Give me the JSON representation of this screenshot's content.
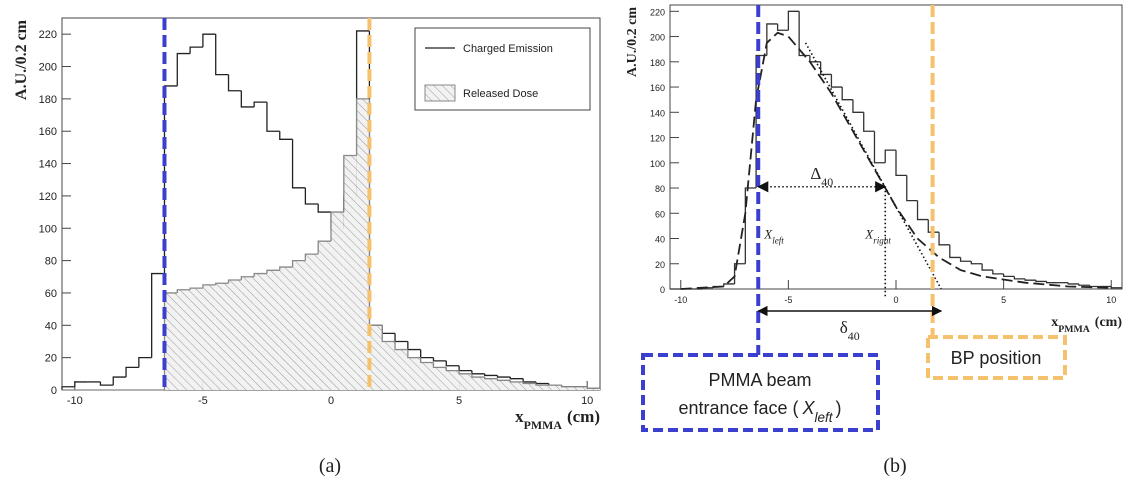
{
  "chart_data": [
    {
      "type": "histogram",
      "ylabel": "A.U./0.2 cm",
      "xlabel": {
        "base": "x",
        "sub": "PMMA",
        "unit": "(cm)"
      },
      "xlim": [
        -10.5,
        10.5
      ],
      "ylim": [
        0,
        230
      ],
      "xticks": [
        -10,
        -5,
        0,
        5,
        10
      ],
      "yticks": [
        0,
        20,
        40,
        60,
        80,
        100,
        120,
        140,
        160,
        180,
        200,
        220
      ],
      "legend": "upper right",
      "bins": [
        -10.5,
        -10,
        -9.5,
        -9,
        -8.5,
        -8,
        -7.5,
        -7,
        -6.5,
        -6,
        -5.5,
        -5,
        -4.5,
        -4,
        -3.5,
        -3,
        -2.5,
        -2,
        -1.5,
        -1,
        -0.5,
        0,
        0.5,
        1,
        1.5,
        2,
        2.5,
        3,
        3.5,
        4,
        4.5,
        5,
        5.5,
        6,
        6.5,
        7,
        7.5,
        8,
        8.5,
        9,
        9.5,
        10,
        10.5
      ],
      "series": [
        {
          "name": "Charged Emission",
          "color": "#222222",
          "fill": "none",
          "values": [
            2,
            5,
            5,
            3,
            8,
            14,
            20,
            72,
            188,
            208,
            212,
            220,
            195,
            185,
            175,
            178,
            160,
            155,
            125,
            115,
            110,
            100,
            120,
            222,
            40,
            35,
            30,
            25,
            20,
            18,
            15,
            12,
            10,
            9,
            8,
            7,
            5,
            4,
            3,
            2,
            2,
            1
          ]
        },
        {
          "name": "Released Dose",
          "color": "#888888",
          "fill": "hatch",
          "values": [
            0,
            0,
            0,
            0,
            0,
            0,
            0,
            0,
            60,
            62,
            63,
            65,
            66,
            68,
            70,
            72,
            74,
            76,
            80,
            84,
            92,
            110,
            145,
            180,
            40,
            30,
            25,
            20,
            17,
            14,
            12,
            10,
            8,
            7,
            6,
            5,
            4,
            3,
            3,
            2,
            2,
            1
          ]
        }
      ],
      "markers": [
        {
          "value": -6.5,
          "color": "#3a3fd0"
        },
        {
          "value": 1.5,
          "color": "#f5c16c"
        }
      ]
    },
    {
      "type": "histogram",
      "ylabel": "A.U./0.2 cm",
      "xlabel": {
        "base": "x",
        "sub": "PMMA",
        "unit": "(cm)"
      },
      "xlim": [
        -10.5,
        10.5
      ],
      "ylim": [
        0,
        225
      ],
      "xticks": [
        -10,
        -5,
        0,
        5,
        10
      ],
      "yticks": [
        0,
        20,
        40,
        60,
        80,
        100,
        120,
        140,
        160,
        180,
        200,
        220
      ],
      "bins": [
        -10.5,
        -10,
        -9.5,
        -9,
        -8.5,
        -8,
        -7.5,
        -7,
        -6.5,
        -6,
        -5.5,
        -5,
        -4.5,
        -4,
        -3.5,
        -3,
        -2.5,
        -2,
        -1.5,
        -1,
        -0.5,
        0,
        0.5,
        1,
        1.5,
        2,
        2.5,
        3,
        3.5,
        4,
        4.5,
        5,
        5.5,
        6,
        6.5,
        7,
        7.5,
        8,
        8.5,
        9,
        9.5,
        10,
        10.5
      ],
      "series": [
        {
          "color": "#333333",
          "fill": "none",
          "values": [
            0,
            0,
            0,
            1,
            2,
            4,
            20,
            80,
            185,
            210,
            205,
            220,
            185,
            180,
            170,
            160,
            150,
            140,
            125,
            100,
            110,
            90,
            70,
            55,
            45,
            35,
            25,
            22,
            20,
            15,
            12,
            10,
            8,
            7,
            6,
            5,
            5,
            4,
            3,
            2,
            2,
            1
          ]
        }
      ],
      "fit": {
        "color": "#222222",
        "x": [
          -10,
          -8,
          -7.5,
          -7,
          -6.5,
          -6,
          -5.5,
          -5,
          -4,
          -3,
          -2,
          -1,
          0,
          1,
          2,
          3,
          4,
          6,
          8,
          10
        ],
        "values": [
          0,
          2,
          10,
          60,
          150,
          195,
          203,
          200,
          180,
          155,
          125,
          95,
          65,
          40,
          25,
          15,
          10,
          5,
          2,
          1
        ]
      },
      "tangent": {
        "x": [
          -4.2,
          2.1
        ],
        "values": [
          195,
          0
        ]
      },
      "x_left": -6.4,
      "x_right": -0.5,
      "level_40": 81,
      "markers": [
        {
          "value": -6.4,
          "color": "#3a3fd0"
        },
        {
          "value": 1.7,
          "color": "#f5c16c"
        }
      ],
      "annotations": {
        "delta_big": {
          "base": "Δ",
          "sub": "40"
        },
        "delta_small": {
          "base": "δ",
          "sub": "40"
        },
        "x_left_label": {
          "base": "X",
          "sub": "left"
        },
        "x_right_label": {
          "base": "X",
          "sub": "right"
        }
      },
      "box_entrance": {
        "line1": "PMMA beam",
        "line2": "entrance face (",
        "var_base": "X",
        "var_sub": "left",
        "close": ")"
      },
      "box_bp": "BP position"
    }
  ],
  "captions": [
    "(a)",
    "(b)"
  ]
}
